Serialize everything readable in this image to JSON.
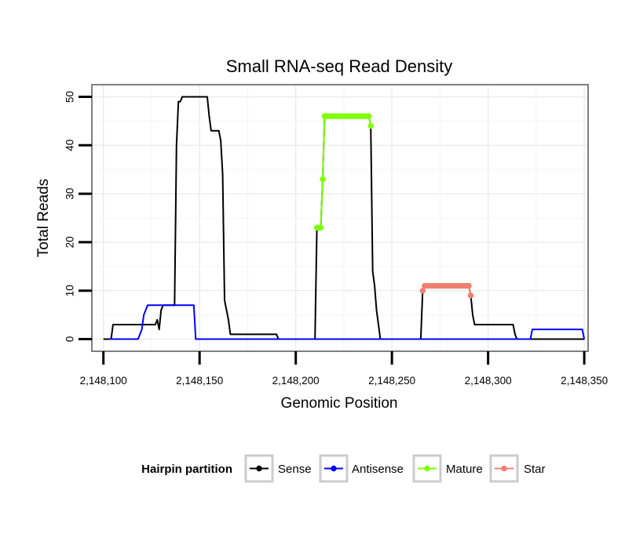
{
  "chart_data": {
    "type": "line",
    "title": "Small RNA-seq Read Density",
    "xlabel": "Genomic Position",
    "ylabel": "Total Reads",
    "xlim": [
      2148094,
      2148352
    ],
    "ylim": [
      -2.5,
      52.5
    ],
    "grid": true,
    "x_ticks": [
      2148100,
      2148150,
      2148200,
      2148250,
      2148300,
      2148350
    ],
    "x_tick_labels": [
      "2,148,100",
      "2,148,150",
      "2,148,200",
      "2,148,250",
      "2,148,300",
      "2,148,350"
    ],
    "y_ticks": [
      0,
      10,
      20,
      30,
      40,
      50
    ],
    "y_tick_labels": [
      "0",
      "10",
      "20",
      "30",
      "40",
      "50"
    ],
    "legend": {
      "title": "Hairpin partition",
      "position": "bottom"
    },
    "series": [
      {
        "name": "Sense",
        "color": "#000000",
        "points": [
          [
            2148100,
            0
          ],
          [
            2148104,
            0
          ],
          [
            2148105,
            3
          ],
          [
            2148127,
            3
          ],
          [
            2148128,
            4
          ],
          [
            2148129,
            2
          ],
          [
            2148130,
            6
          ],
          [
            2148131,
            7
          ],
          [
            2148137,
            7
          ],
          [
            2148138,
            40
          ],
          [
            2148139,
            49
          ],
          [
            2148140,
            49
          ],
          [
            2148141,
            50
          ],
          [
            2148154,
            50
          ],
          [
            2148155,
            46
          ],
          [
            2148156,
            43
          ],
          [
            2148160,
            43
          ],
          [
            2148161,
            41
          ],
          [
            2148162,
            34
          ],
          [
            2148163,
            8
          ],
          [
            2148165,
            4
          ],
          [
            2148166,
            1
          ],
          [
            2148190,
            1
          ],
          [
            2148191,
            0
          ],
          [
            2148210,
            0
          ],
          [
            2148211,
            23
          ],
          [
            2148213,
            23
          ],
          [
            2148214,
            33
          ],
          [
            2148215,
            46
          ],
          [
            2148238,
            46
          ],
          [
            2148239,
            44
          ],
          [
            2148240,
            14
          ],
          [
            2148241,
            11
          ],
          [
            2148242,
            6
          ],
          [
            2148244,
            0
          ],
          [
            2148265,
            0
          ],
          [
            2148266,
            10
          ],
          [
            2148267,
            11
          ],
          [
            2148290,
            11
          ],
          [
            2148291,
            9
          ],
          [
            2148292,
            5
          ],
          [
            2148293,
            3
          ],
          [
            2148313,
            3
          ],
          [
            2148314,
            1
          ],
          [
            2148315,
            0
          ],
          [
            2148350,
            0
          ]
        ]
      },
      {
        "name": "Antisense",
        "color": "#0000ff",
        "points": [
          [
            2148103,
            0
          ],
          [
            2148118,
            0
          ],
          [
            2148119,
            1
          ],
          [
            2148120,
            2
          ],
          [
            2148121,
            5
          ],
          [
            2148122,
            6
          ],
          [
            2148123,
            7
          ],
          [
            2148147,
            7
          ],
          [
            2148148,
            0
          ],
          [
            2148322,
            0
          ],
          [
            2148323,
            2
          ],
          [
            2148349,
            2
          ],
          [
            2148350,
            0
          ]
        ]
      },
      {
        "name": "Mature",
        "color": "#7fff00",
        "points": [
          [
            2148211,
            23
          ],
          [
            2148212,
            23
          ],
          [
            2148213,
            23
          ],
          [
            2148214,
            33
          ],
          [
            2148215,
            46
          ],
          [
            2148216,
            46
          ],
          [
            2148217,
            46
          ],
          [
            2148218,
            46
          ],
          [
            2148219,
            46
          ],
          [
            2148220,
            46
          ],
          [
            2148221,
            46
          ],
          [
            2148222,
            46
          ],
          [
            2148223,
            46
          ],
          [
            2148224,
            46
          ],
          [
            2148225,
            46
          ],
          [
            2148226,
            46
          ],
          [
            2148227,
            46
          ],
          [
            2148228,
            46
          ],
          [
            2148229,
            46
          ],
          [
            2148230,
            46
          ],
          [
            2148231,
            46
          ],
          [
            2148232,
            46
          ],
          [
            2148233,
            46
          ],
          [
            2148234,
            46
          ],
          [
            2148235,
            46
          ],
          [
            2148236,
            46
          ],
          [
            2148237,
            46
          ],
          [
            2148238,
            46
          ],
          [
            2148239,
            44
          ]
        ]
      },
      {
        "name": "Star",
        "color": "#f08070",
        "points": [
          [
            2148266,
            10
          ],
          [
            2148267,
            11
          ],
          [
            2148268,
            11
          ],
          [
            2148269,
            11
          ],
          [
            2148270,
            11
          ],
          [
            2148271,
            11
          ],
          [
            2148272,
            11
          ],
          [
            2148273,
            11
          ],
          [
            2148274,
            11
          ],
          [
            2148275,
            11
          ],
          [
            2148276,
            11
          ],
          [
            2148277,
            11
          ],
          [
            2148278,
            11
          ],
          [
            2148279,
            11
          ],
          [
            2148280,
            11
          ],
          [
            2148281,
            11
          ],
          [
            2148282,
            11
          ],
          [
            2148283,
            11
          ],
          [
            2148284,
            11
          ],
          [
            2148285,
            11
          ],
          [
            2148286,
            11
          ],
          [
            2148287,
            11
          ],
          [
            2148288,
            11
          ],
          [
            2148289,
            11
          ],
          [
            2148290,
            11
          ],
          [
            2148291,
            9
          ]
        ]
      }
    ]
  }
}
